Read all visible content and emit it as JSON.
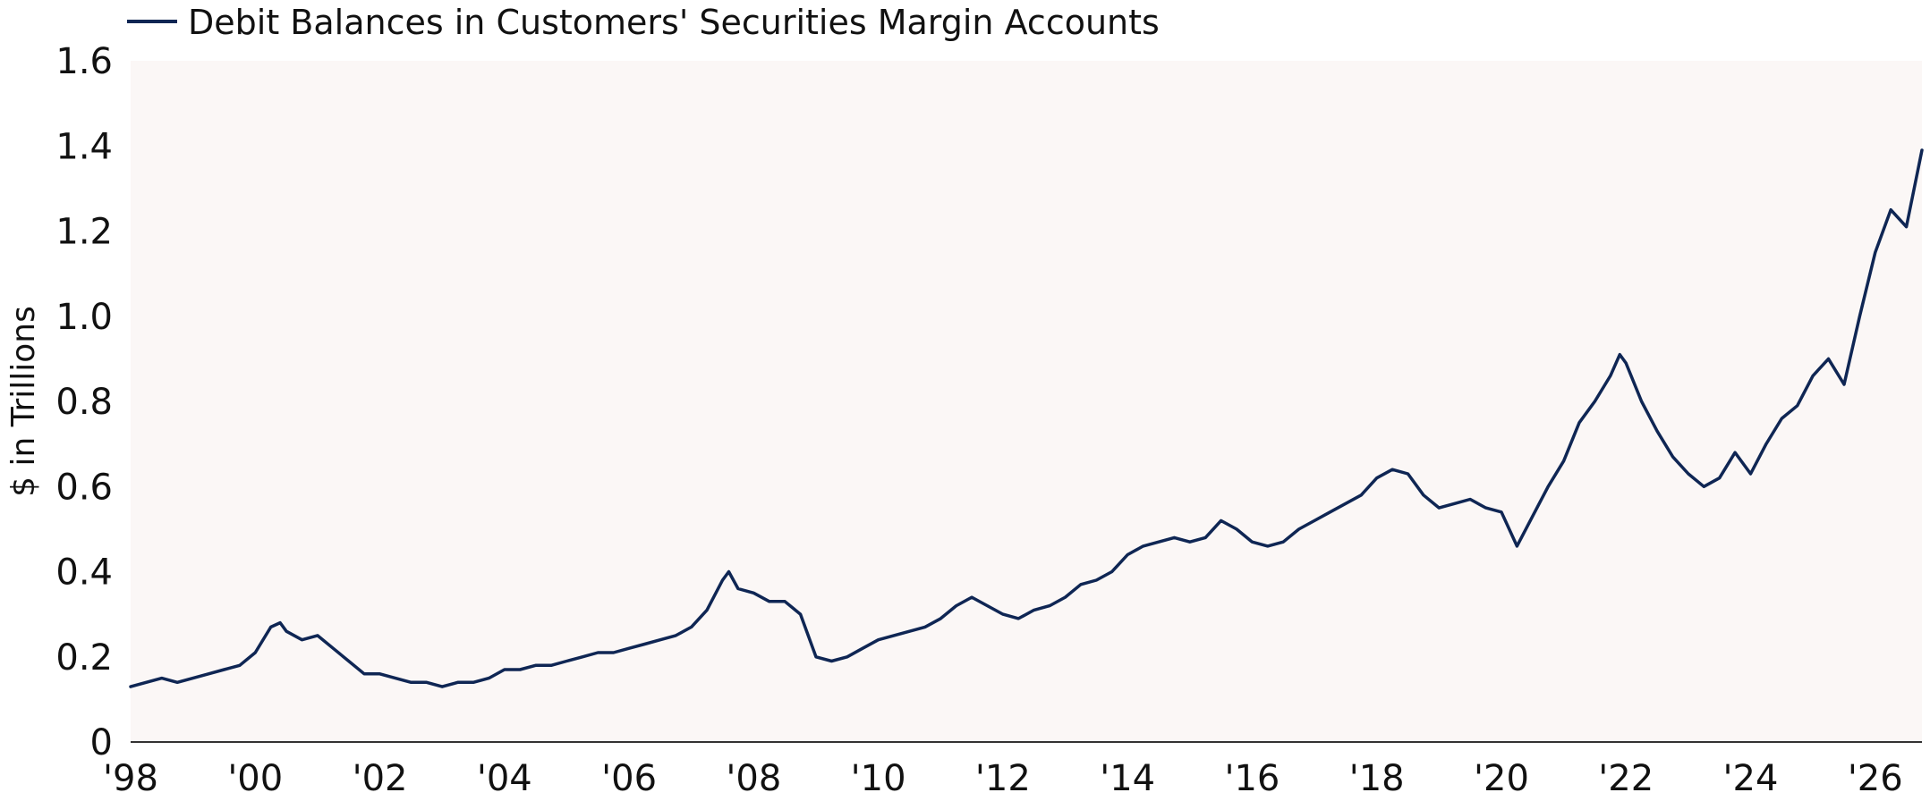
{
  "chart_data": {
    "type": "line",
    "title": "",
    "xlabel": "",
    "ylabel": "$ in Trillions",
    "ylim": [
      0,
      1.6
    ],
    "xlim": [
      1998.0,
      2026.75
    ],
    "yticks": [
      0,
      0.2,
      0.4,
      0.6,
      0.8,
      1.0,
      1.2,
      1.4,
      1.6
    ],
    "ytick_labels": [
      "0",
      "0.2",
      "0.4",
      "0.6",
      "0.8",
      "1.0",
      "1.2",
      "1.4",
      "1.6"
    ],
    "xticks": [
      1998,
      2000,
      2002,
      2004,
      2006,
      2008,
      2010,
      2012,
      2014,
      2016,
      2018,
      2020,
      2022,
      2024,
      2026
    ],
    "xtick_labels": [
      "'98",
      "'00",
      "'02",
      "'04",
      "'06",
      "'08",
      "'10",
      "'12",
      "'14",
      "'16",
      "'18",
      "'20",
      "'22",
      "'24",
      "'26"
    ],
    "grid": false,
    "legend": "top-left",
    "colors": {
      "series": "#0f2654",
      "plot_background": "#fbf7f6",
      "axis": "#333333"
    },
    "series": [
      {
        "name": "Debit Balances in Customers' Securities Margin Accounts",
        "points": [
          [
            1998.0,
            0.13
          ],
          [
            1998.25,
            0.14
          ],
          [
            1998.5,
            0.15
          ],
          [
            1998.75,
            0.14
          ],
          [
            1999.0,
            0.15
          ],
          [
            1999.25,
            0.16
          ],
          [
            1999.5,
            0.17
          ],
          [
            1999.75,
            0.18
          ],
          [
            2000.0,
            0.21
          ],
          [
            2000.25,
            0.27
          ],
          [
            2000.4,
            0.28
          ],
          [
            2000.5,
            0.26
          ],
          [
            2000.75,
            0.24
          ],
          [
            2001.0,
            0.25
          ],
          [
            2001.25,
            0.22
          ],
          [
            2001.5,
            0.19
          ],
          [
            2001.75,
            0.16
          ],
          [
            2002.0,
            0.16
          ],
          [
            2002.25,
            0.15
          ],
          [
            2002.5,
            0.14
          ],
          [
            2002.75,
            0.14
          ],
          [
            2003.0,
            0.13
          ],
          [
            2003.25,
            0.14
          ],
          [
            2003.5,
            0.14
          ],
          [
            2003.75,
            0.15
          ],
          [
            2004.0,
            0.17
          ],
          [
            2004.25,
            0.17
          ],
          [
            2004.5,
            0.18
          ],
          [
            2004.75,
            0.18
          ],
          [
            2005.0,
            0.19
          ],
          [
            2005.25,
            0.2
          ],
          [
            2005.5,
            0.21
          ],
          [
            2005.75,
            0.21
          ],
          [
            2006.0,
            0.22
          ],
          [
            2006.25,
            0.23
          ],
          [
            2006.5,
            0.24
          ],
          [
            2006.75,
            0.25
          ],
          [
            2007.0,
            0.27
          ],
          [
            2007.25,
            0.31
          ],
          [
            2007.5,
            0.38
          ],
          [
            2007.6,
            0.4
          ],
          [
            2007.75,
            0.36
          ],
          [
            2008.0,
            0.35
          ],
          [
            2008.25,
            0.33
          ],
          [
            2008.5,
            0.33
          ],
          [
            2008.75,
            0.3
          ],
          [
            2009.0,
            0.2
          ],
          [
            2009.25,
            0.19
          ],
          [
            2009.5,
            0.2
          ],
          [
            2009.75,
            0.22
          ],
          [
            2010.0,
            0.24
          ],
          [
            2010.25,
            0.25
          ],
          [
            2010.5,
            0.26
          ],
          [
            2010.75,
            0.27
          ],
          [
            2011.0,
            0.29
          ],
          [
            2011.25,
            0.32
          ],
          [
            2011.5,
            0.34
          ],
          [
            2011.75,
            0.32
          ],
          [
            2012.0,
            0.3
          ],
          [
            2012.25,
            0.29
          ],
          [
            2012.5,
            0.31
          ],
          [
            2012.75,
            0.32
          ],
          [
            2013.0,
            0.34
          ],
          [
            2013.25,
            0.37
          ],
          [
            2013.5,
            0.38
          ],
          [
            2013.75,
            0.4
          ],
          [
            2014.0,
            0.44
          ],
          [
            2014.25,
            0.46
          ],
          [
            2014.5,
            0.47
          ],
          [
            2014.75,
            0.48
          ],
          [
            2015.0,
            0.47
          ],
          [
            2015.25,
            0.48
          ],
          [
            2015.5,
            0.52
          ],
          [
            2015.75,
            0.5
          ],
          [
            2016.0,
            0.47
          ],
          [
            2016.25,
            0.46
          ],
          [
            2016.5,
            0.47
          ],
          [
            2016.75,
            0.5
          ],
          [
            2017.0,
            0.52
          ],
          [
            2017.25,
            0.54
          ],
          [
            2017.5,
            0.56
          ],
          [
            2017.75,
            0.58
          ],
          [
            2018.0,
            0.62
          ],
          [
            2018.25,
            0.64
          ],
          [
            2018.5,
            0.63
          ],
          [
            2018.75,
            0.58
          ],
          [
            2019.0,
            0.55
          ],
          [
            2019.25,
            0.56
          ],
          [
            2019.5,
            0.57
          ],
          [
            2019.75,
            0.55
          ],
          [
            2020.0,
            0.54
          ],
          [
            2020.25,
            0.46
          ],
          [
            2020.5,
            0.53
          ],
          [
            2020.75,
            0.6
          ],
          [
            2021.0,
            0.66
          ],
          [
            2021.25,
            0.75
          ],
          [
            2021.5,
            0.8
          ],
          [
            2021.75,
            0.86
          ],
          [
            2021.9,
            0.91
          ],
          [
            2022.0,
            0.89
          ],
          [
            2022.25,
            0.8
          ],
          [
            2022.5,
            0.73
          ],
          [
            2022.75,
            0.67
          ],
          [
            2023.0,
            0.63
          ],
          [
            2023.25,
            0.6
          ],
          [
            2023.5,
            0.62
          ],
          [
            2023.75,
            0.68
          ],
          [
            2024.0,
            0.63
          ],
          [
            2024.25,
            0.7
          ],
          [
            2024.5,
            0.76
          ],
          [
            2024.75,
            0.79
          ],
          [
            2025.0,
            0.86
          ],
          [
            2025.25,
            0.9
          ],
          [
            2025.5,
            0.84
          ],
          [
            2025.75,
            1.0
          ],
          [
            2026.0,
            1.15
          ],
          [
            2026.25,
            1.25
          ],
          [
            2026.5,
            1.21
          ],
          [
            2026.75,
            1.39
          ]
        ]
      }
    ]
  }
}
